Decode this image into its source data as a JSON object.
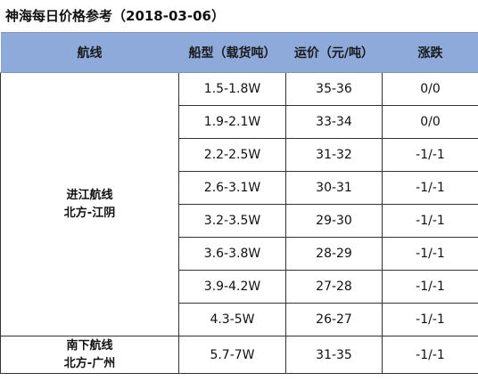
{
  "title": "神海每日价格参考（2018-03-06）",
  "headers": {
    "route": "航线",
    "ship_type": "船型（载货吨）",
    "freight": "运价（元/吨）",
    "change": "涨跌"
  },
  "groups": [
    {
      "route_line1": "进江航线",
      "route_line2": "北方-江阴",
      "rows": [
        {
          "ship_type": "1.5-1.8W",
          "freight": "35-36",
          "change": "0/0"
        },
        {
          "ship_type": "1.9-2.1W",
          "freight": "33-34",
          "change": "0/0"
        },
        {
          "ship_type": "2.2-2.5W",
          "freight": "31-32",
          "change": "-1/-1"
        },
        {
          "ship_type": "2.6-3.1W",
          "freight": "30-31",
          "change": "-1/-1"
        },
        {
          "ship_type": "3.2-3.5W",
          "freight": "29-30",
          "change": "-1/-1"
        },
        {
          "ship_type": "3.6-3.8W",
          "freight": "28-29",
          "change": "-1/-1"
        },
        {
          "ship_type": "3.9-4.2W",
          "freight": "27-28",
          "change": "-1/-1"
        },
        {
          "ship_type": "4.3-5W",
          "freight": "26-27",
          "change": "-1/-1"
        }
      ]
    },
    {
      "route_line1": "南下航线",
      "route_line2": "北方-广州",
      "rows": [
        {
          "ship_type": "5.7-7W",
          "freight": "31-35",
          "change": "-1/-1"
        }
      ]
    }
  ]
}
